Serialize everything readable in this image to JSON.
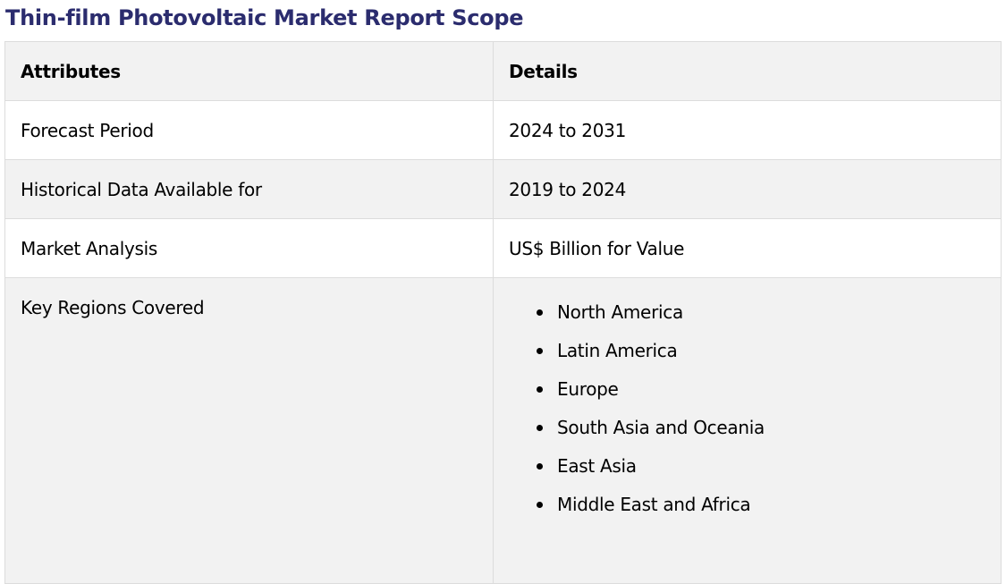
{
  "page": {
    "title": "Thin-film Photovoltaic Market Report Scope",
    "title_color": "#2b2c6e"
  },
  "table": {
    "headers": {
      "attributes": "Attributes",
      "details": "Details"
    },
    "rows": [
      {
        "attribute": "Forecast Period",
        "detail": "2024 to 2031"
      },
      {
        "attribute": "Historical Data Available for",
        "detail": "2019 to 2024"
      },
      {
        "attribute": "Market Analysis",
        "detail": "US$ Billion for Value"
      }
    ],
    "regions": {
      "attribute": "Key Regions Covered",
      "items": [
        "North America",
        "Latin America",
        "Europe",
        "South Asia and Oceania",
        "East Asia",
        "Middle East and Africa"
      ]
    },
    "colors": {
      "shaded_row": "#f2f2f2",
      "plain_row": "#ffffff",
      "border": "#dcdcdc"
    }
  }
}
